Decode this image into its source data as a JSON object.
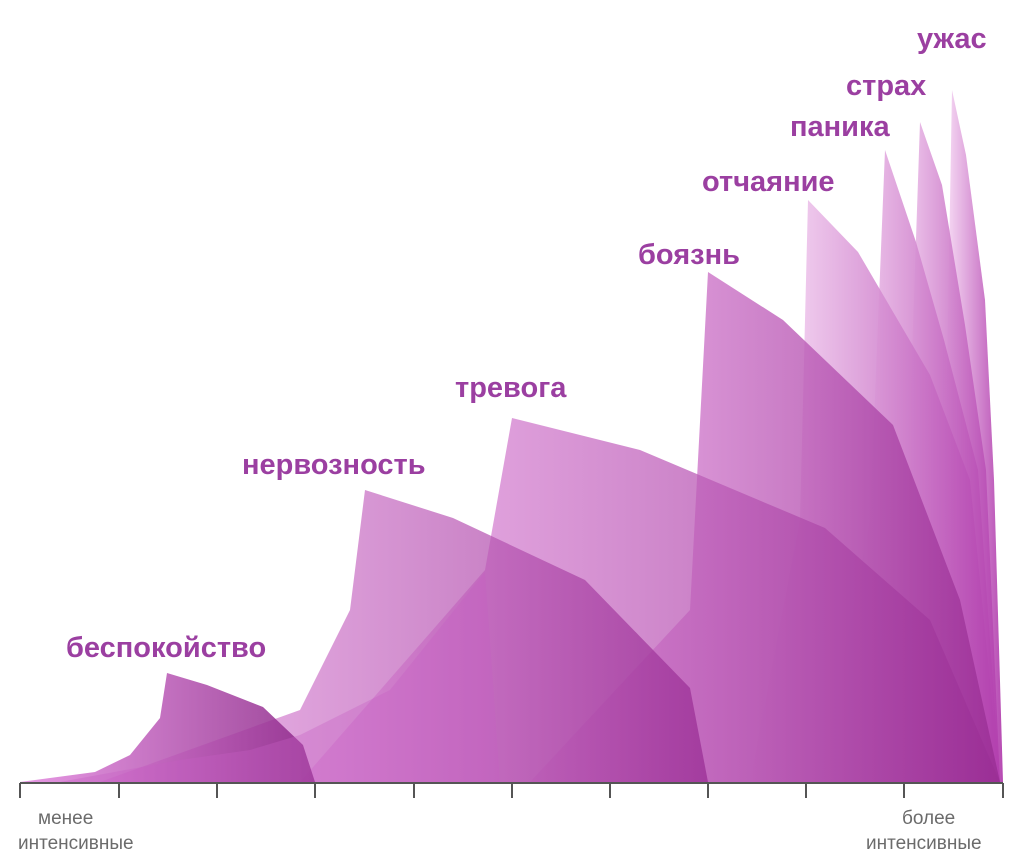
{
  "peaks": [
    {
      "label": "беспокойство"
    },
    {
      "label": "нервозность"
    },
    {
      "label": "тревога"
    },
    {
      "label": "боязнь"
    },
    {
      "label": "отчаяние"
    },
    {
      "label": "паника"
    },
    {
      "label": "страх"
    },
    {
      "label": "ужас"
    }
  ],
  "axis": {
    "left_label_1": "менее",
    "left_label_2": "интенсивные",
    "right_label_1": "более",
    "right_label_2": "интенсивные"
  },
  "colors": {
    "light": "#fce6fb",
    "mid": "#dd8fdb",
    "dark": "#8e2a8a",
    "label": "#9b3fa1",
    "axis": "#555555"
  }
}
